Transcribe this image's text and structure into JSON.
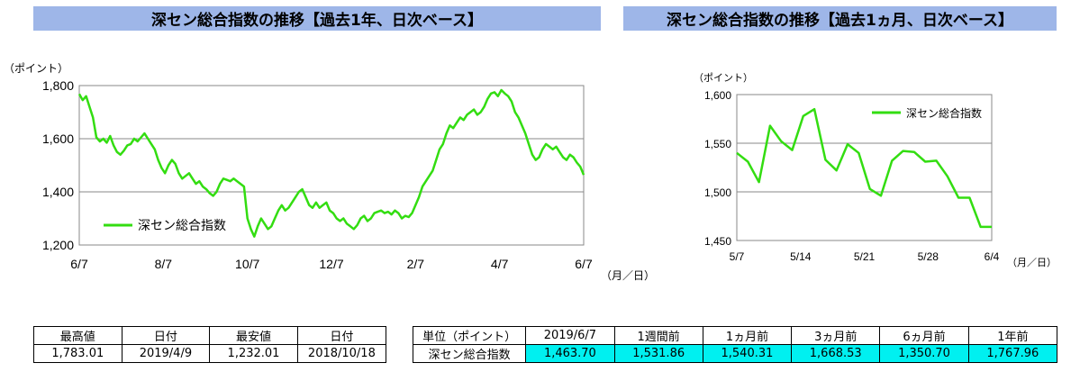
{
  "headers": {
    "left": "深セン総合指数の推移【過去1年、日次ベース】",
    "right": "深セン総合指数の推移【過去1ヵ月、日次ベース】"
  },
  "chart_data": [
    {
      "type": "line",
      "y_unit_label": "（ポイント）",
      "x_unit_label": "（月／日）",
      "ylim": [
        1200,
        1800
      ],
      "yticks": [
        "1,200",
        "1,400",
        "1,600",
        "1,800"
      ],
      "xticks": [
        "6/7",
        "8/7",
        "10/7",
        "12/7",
        "2/7",
        "4/7",
        "6/7"
      ],
      "grid": true,
      "legend": "bottom-left",
      "color": "#33dd11",
      "series": [
        {
          "name": "深セン総合指数",
          "values": [
            1768,
            1745,
            1760,
            1720,
            1680,
            1605,
            1590,
            1600,
            1585,
            1610,
            1575,
            1550,
            1540,
            1555,
            1575,
            1580,
            1600,
            1590,
            1605,
            1620,
            1600,
            1580,
            1560,
            1520,
            1490,
            1470,
            1500,
            1520,
            1505,
            1470,
            1450,
            1460,
            1470,
            1450,
            1430,
            1440,
            1420,
            1410,
            1395,
            1385,
            1400,
            1430,
            1450,
            1445,
            1440,
            1450,
            1440,
            1430,
            1420,
            1300,
            1260,
            1232,
            1270,
            1300,
            1280,
            1260,
            1270,
            1300,
            1330,
            1350,
            1330,
            1340,
            1360,
            1380,
            1400,
            1410,
            1380,
            1350,
            1340,
            1360,
            1340,
            1350,
            1360,
            1330,
            1320,
            1300,
            1290,
            1300,
            1280,
            1270,
            1260,
            1275,
            1300,
            1310,
            1290,
            1300,
            1320,
            1325,
            1330,
            1320,
            1325,
            1315,
            1330,
            1320,
            1300,
            1310,
            1305,
            1320,
            1350,
            1380,
            1420,
            1440,
            1460,
            1480,
            1520,
            1560,
            1580,
            1620,
            1650,
            1640,
            1660,
            1680,
            1670,
            1690,
            1700,
            1710,
            1690,
            1700,
            1720,
            1750,
            1770,
            1775,
            1760,
            1783,
            1770,
            1760,
            1740,
            1700,
            1680,
            1650,
            1620,
            1580,
            1540,
            1520,
            1530,
            1560,
            1580,
            1570,
            1560,
            1570,
            1550,
            1530,
            1520,
            1540,
            1530,
            1510,
            1495,
            1464
          ],
          "min_label_value": 1232.01,
          "max_label_value": 1783.01
        }
      ]
    },
    {
      "type": "line",
      "y_unit_label": "（ポイント）",
      "x_unit_label": "（月／日）",
      "ylim": [
        1450,
        1600
      ],
      "yticks": [
        "1,450",
        "1,500",
        "1,550",
        "1,600"
      ],
      "xticks": [
        "5/7",
        "5/14",
        "5/21",
        "5/28",
        "6/4"
      ],
      "grid": true,
      "legend": "top-right",
      "color": "#33dd11",
      "series": [
        {
          "name": "深セン総合指数",
          "values": [
            1540,
            1531,
            1510,
            1568,
            1552,
            1543,
            1578,
            1585,
            1533,
            1522,
            1549,
            1540,
            1503,
            1496,
            1532,
            1542,
            1541,
            1531,
            1532,
            1516,
            1494,
            1494,
            1464,
            1464
          ]
        }
      ]
    }
  ],
  "stats_table": {
    "headers": [
      "最高値",
      "日付",
      "最安値",
      "日付"
    ],
    "values": [
      "1,783.01",
      "2019/4/9",
      "1,232.01",
      "2018/10/18"
    ]
  },
  "perf_table": {
    "headers": [
      "単位（ポイント）",
      "2019/6/7",
      "1週間前",
      "1ヵ月前",
      "3ヵ月前",
      "6ヵ月前",
      "1年前"
    ],
    "row_label": "深セン総合指数",
    "values": [
      "1,463.70",
      "1,531.86",
      "1,540.31",
      "1,668.53",
      "1,350.70",
      "1,767.96"
    ]
  }
}
